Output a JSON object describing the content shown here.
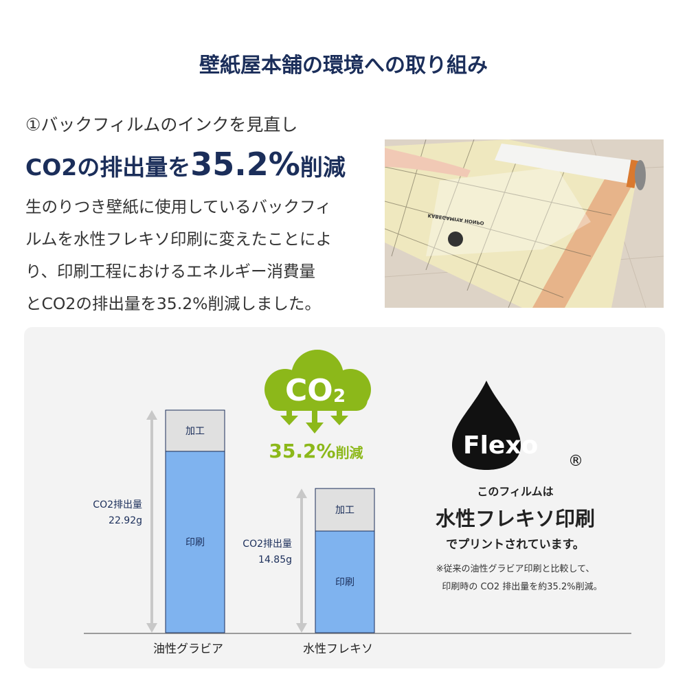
{
  "title": "壁紙屋本舗の環境への取り組み",
  "section": {
    "subtitle": "①バックフィルムのインクを見直し",
    "headline_pre": "CO2の排出量を",
    "headline_value": "35.2%",
    "headline_post": "削減",
    "body_lines": [
      "生のりつき壁紙に使用しているバックフィ",
      "ルムを水性フレキソ印刷に変えたことによ",
      "り、印刷工程におけるエネルギー消費量",
      "とCO2の排出量を35.2%削減しました。"
    ],
    "photo_text": "KABEGAMIYA HONPO"
  },
  "co2_badge": {
    "cloud_text": "CO",
    "cloud_sub": "2",
    "reduction_value": "35.2%",
    "reduction_label": "削減",
    "color": "#8cb81a"
  },
  "flexo": {
    "logo_text": "Flexo",
    "registered": "®",
    "line1": "このフィルムは",
    "line2": "水性フレキソ印刷",
    "line3": "でプリントされています。",
    "note1": "※従来の油性グラビア印刷と比較して、",
    "note2": "印刷時の CO2 排出量を約35.2%削減。"
  },
  "chart_data": {
    "type": "bar",
    "stacked": true,
    "categories": [
      "油性グラビア",
      "水性フレキソ"
    ],
    "series": [
      {
        "name": "印刷",
        "values": [
          18.68,
          10.47
        ],
        "color": "#7fb3ef"
      },
      {
        "name": "加工",
        "values": [
          4.24,
          4.38
        ],
        "color": "#e0e0e0"
      }
    ],
    "totals_label": "CO2排出量",
    "totals": [
      "22.92g",
      "14.85g"
    ],
    "total_values": [
      22.92,
      14.85
    ],
    "ylim": [
      0,
      22.92
    ],
    "grid": false
  }
}
